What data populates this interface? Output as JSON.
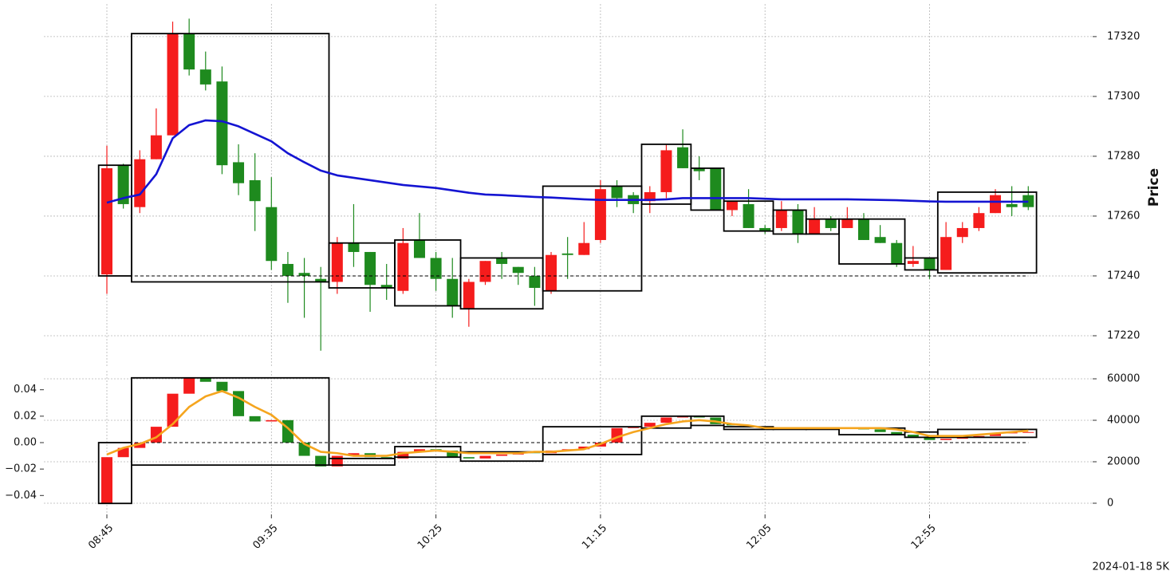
{
  "chart_data": [
    {
      "type": "candlestick",
      "ylabel": "Price",
      "up_color": "#f51c1c",
      "down_color": "#1e8a1e",
      "ylim": [
        17209.6,
        17330.9
      ],
      "yticks": [
        17220,
        17240,
        17260,
        17280,
        17300,
        17320
      ],
      "grid": true,
      "reference_line": 17240,
      "open": [
        17240.5,
        17277,
        17263,
        17279,
        17287,
        17321,
        17309,
        17305,
        17278,
        17272,
        17263,
        17244,
        17241,
        17239,
        17238,
        17251,
        17248,
        17237,
        17235,
        17252,
        17246,
        17239,
        17229,
        17238,
        17246,
        17243,
        17240,
        17235,
        17247.5,
        17247,
        17252,
        17270,
        17267,
        17265,
        17268,
        17283,
        17276,
        17276,
        17262,
        17264,
        17256,
        17256,
        17262,
        17254,
        17259,
        17256,
        17259,
        17253,
        17251,
        17244,
        17246,
        17242,
        17253,
        17256,
        17261,
        17264,
        17267
      ],
      "high": [
        17283.5,
        17277.5,
        17282,
        17296,
        17325,
        17326,
        17315,
        17310,
        17284,
        17281,
        17273,
        17248,
        17246,
        17243,
        17253,
        17264,
        17248,
        17244,
        17256,
        17261,
        17248,
        17246,
        17239,
        17245,
        17248,
        17243,
        17243,
        17248,
        17253,
        17258,
        17272,
        17272,
        17268,
        17270,
        17284,
        17289,
        17280,
        17276,
        17265,
        17269,
        17257,
        17265,
        17264,
        17263,
        17260,
        17263,
        17261,
        17257,
        17252,
        17250,
        17246,
        17258,
        17258,
        17263,
        17269,
        17270,
        17270
      ],
      "low": [
        17234,
        17262.5,
        17261,
        17279,
        17287,
        17307,
        17302,
        17274,
        17267,
        17255,
        17242,
        17231,
        17226,
        17215,
        17234,
        17243,
        17228,
        17232,
        17234,
        17246,
        17235,
        17226,
        17223,
        17237,
        17239,
        17237,
        17230,
        17234,
        17239,
        17247,
        17251,
        17263,
        17261,
        17261,
        17266,
        17276,
        17272,
        17262,
        17260,
        17256,
        17254,
        17255,
        17251,
        17254,
        17255,
        17256,
        17252,
        17251,
        17243,
        17243,
        17239,
        17242,
        17251,
        17255,
        17261,
        17260,
        17262
      ],
      "close": [
        17276,
        17264,
        17279,
        17287,
        17321,
        17309,
        17304,
        17277,
        17271,
        17265,
        17245,
        17240,
        17240,
        17238,
        17251,
        17248,
        17237,
        17236,
        17251,
        17246,
        17239,
        17230,
        17238,
        17245,
        17244,
        17241,
        17236,
        17247,
        17247,
        17251,
        17269,
        17266,
        17264,
        17268,
        17282,
        17276,
        17275,
        17262,
        17265,
        17256,
        17255,
        17262,
        17254,
        17259,
        17256,
        17259,
        17252,
        17251,
        17244,
        17245,
        17242,
        17253,
        17256,
        17261,
        17267,
        17263,
        17263
      ],
      "line": {
        "color": "#1414d2",
        "values": [
          17264.5,
          17266,
          17267.2,
          17274,
          17286,
          17290.4,
          17292,
          17291.7,
          17290,
          17287.5,
          17285,
          17281,
          17278,
          17275.2,
          17273.6,
          17272.8,
          17272,
          17271.2,
          17270.4,
          17269.9,
          17269.4,
          17268.6,
          17267.8,
          17267.2,
          17267,
          17266.7,
          17266.4,
          17266.2,
          17265.9,
          17265.6,
          17265.4,
          17265.4,
          17265.4,
          17265.4,
          17265.6,
          17266,
          17266,
          17266,
          17266,
          17266,
          17265.8,
          17265.6,
          17265.6,
          17265.6,
          17265.6,
          17265.6,
          17265.5,
          17265.4,
          17265.3,
          17265.1,
          17264.9,
          17264.8,
          17264.8,
          17264.8,
          17264.8,
          17264.8,
          17264.8
        ]
      },
      "boxes": [
        {
          "first": 0,
          "last": 1,
          "high": 17277,
          "low": 17240
        },
        {
          "first": 2,
          "last": 13,
          "high": 17321,
          "low": 17238
        },
        {
          "first": 14,
          "last": 17,
          "high": 17251,
          "low": 17236
        },
        {
          "first": 18,
          "last": 21,
          "high": 17252,
          "low": 17230
        },
        {
          "first": 22,
          "last": 26,
          "high": 17246,
          "low": 17229
        },
        {
          "first": 27,
          "last": 32,
          "high": 17270,
          "low": 17235
        },
        {
          "first": 33,
          "last": 35,
          "high": 17284,
          "low": 17264
        },
        {
          "first": 36,
          "last": 37,
          "high": 17276,
          "low": 17262
        },
        {
          "first": 38,
          "last": 40,
          "high": 17265,
          "low": 17255
        },
        {
          "first": 41,
          "last": 42,
          "high": 17262,
          "low": 17254
        },
        {
          "first": 43,
          "last": 44,
          "high": 17259,
          "low": 17254
        },
        {
          "first": 45,
          "last": 48,
          "high": 17259,
          "low": 17244
        },
        {
          "first": 49,
          "last": 50,
          "high": 17246,
          "low": 17242
        },
        {
          "first": 51,
          "last": 56,
          "high": 17268,
          "low": 17241
        }
      ]
    },
    {
      "type": "candlestick",
      "up_color": "#f51c1c",
      "down_color": "#1e8a1e",
      "categories": [
        "08:45",
        null,
        null,
        null,
        null,
        null,
        null,
        null,
        null,
        null,
        "09:35",
        null,
        null,
        null,
        null,
        null,
        null,
        null,
        null,
        null,
        "10:25",
        null,
        null,
        null,
        null,
        null,
        null,
        null,
        null,
        null,
        "11:15",
        null,
        null,
        null,
        null,
        null,
        null,
        null,
        null,
        null,
        "12:05",
        null,
        null,
        null,
        null,
        null,
        null,
        null,
        null,
        null,
        "12:55",
        null,
        null,
        null,
        null,
        null,
        null
      ],
      "ylim": [
        -0.0543,
        0.0543
      ],
      "yticks": [
        {
          "value": -0.04,
          "label": "−0.04"
        },
        {
          "value": -0.02,
          "label": "−0.02"
        },
        {
          "value": 0,
          "label": "0.00"
        },
        0.02,
        0.04
      ],
      "y2lim": [
        -5385,
        63846
      ],
      "y2ticks": [
        0,
        20000,
        40000,
        60000
      ],
      "grid": true,
      "reference_line": 0,
      "open": [
        -0.046,
        -0.011,
        -0.004,
        0.0,
        0.012,
        0.037,
        0.049,
        0.046,
        0.039,
        0.02,
        0.016,
        0.017,
        0.0,
        -0.01,
        -0.018,
        -0.01,
        -0.008,
        -0.011,
        -0.012,
        -0.007,
        -0.005,
        -0.006,
        -0.011,
        -0.012,
        -0.01,
        -0.009,
        -0.007,
        -0.008,
        -0.006,
        -0.005,
        -0.003,
        0.0,
        0.011,
        0.012,
        0.015,
        0.019,
        0.02,
        0.019,
        0.014,
        0.013,
        0.012,
        0.011,
        0.011,
        0.011,
        0.011,
        0.011,
        0.011,
        0.01,
        0.008,
        0.006,
        0.004,
        0.002,
        0.003,
        0.004,
        0.005,
        0.007,
        0.008
      ],
      "close": [
        -0.011,
        -0.004,
        0.0,
        0.012,
        0.037,
        0.049,
        0.046,
        0.039,
        0.02,
        0.016,
        0.017,
        0.0,
        -0.01,
        -0.018,
        -0.01,
        -0.008,
        -0.011,
        -0.012,
        -0.007,
        -0.005,
        -0.006,
        -0.011,
        -0.012,
        -0.01,
        -0.009,
        -0.007,
        -0.008,
        -0.006,
        -0.005,
        -0.003,
        0.0,
        0.011,
        0.012,
        0.015,
        0.019,
        0.02,
        0.019,
        0.014,
        0.013,
        0.012,
        0.011,
        0.011,
        0.011,
        0.011,
        0.011,
        0.011,
        0.01,
        0.008,
        0.006,
        0.004,
        0.002,
        0.003,
        0.004,
        0.005,
        0.007,
        0.008,
        0.008
      ],
      "line": {
        "color": "#f5a51e",
        "values": [
          -0.009,
          -0.004,
          -0.001,
          0.004,
          0.014,
          0.027,
          0.035,
          0.039,
          0.034,
          0.027,
          0.021,
          0.011,
          -0.001,
          -0.007,
          -0.008,
          -0.01,
          -0.01,
          -0.01,
          -0.008,
          -0.007,
          -0.006,
          -0.007,
          -0.008,
          -0.008,
          -0.008,
          -0.008,
          -0.007,
          -0.007,
          -0.006,
          -0.005,
          -0.001,
          0.004,
          0.008,
          0.011,
          0.014,
          0.016,
          0.017,
          0.016,
          0.014,
          0.013,
          0.011,
          0.011,
          0.011,
          0.011,
          0.011,
          0.011,
          0.011,
          0.011,
          0.01,
          0.008,
          0.005,
          0.005,
          0.005,
          0.006,
          0.007,
          0.008,
          0.009
        ]
      },
      "boxes": [
        {
          "first": 0,
          "last": 1,
          "high": 0.0,
          "low": -0.046
        },
        {
          "first": 2,
          "last": 13,
          "high": 0.049,
          "low": -0.017
        },
        {
          "first": 14,
          "last": 17,
          "high": -0.012,
          "low": -0.017
        },
        {
          "first": 18,
          "last": 21,
          "high": -0.003,
          "low": -0.011
        },
        {
          "first": 22,
          "last": 26,
          "high": -0.007,
          "low": -0.014
        },
        {
          "first": 27,
          "last": 32,
          "high": 0.012,
          "low": -0.009
        },
        {
          "first": 33,
          "last": 35,
          "high": 0.02,
          "low": 0.011
        },
        {
          "first": 36,
          "last": 37,
          "high": 0.02,
          "low": 0.013
        },
        {
          "first": 38,
          "last": 40,
          "high": 0.012,
          "low": 0.01
        },
        {
          "first": 41,
          "last": 42,
          "high": 0.011,
          "low": 0.01
        },
        {
          "first": 43,
          "last": 44,
          "high": 0.011,
          "low": 0.01
        },
        {
          "first": 45,
          "last": 48,
          "high": 0.011,
          "low": 0.006
        },
        {
          "first": 49,
          "last": 50,
          "high": 0.008,
          "low": 0.004
        },
        {
          "first": 51,
          "last": 56,
          "high": 0.01,
          "low": 0.004
        }
      ]
    }
  ],
  "footer": "2024-01-18 5K"
}
